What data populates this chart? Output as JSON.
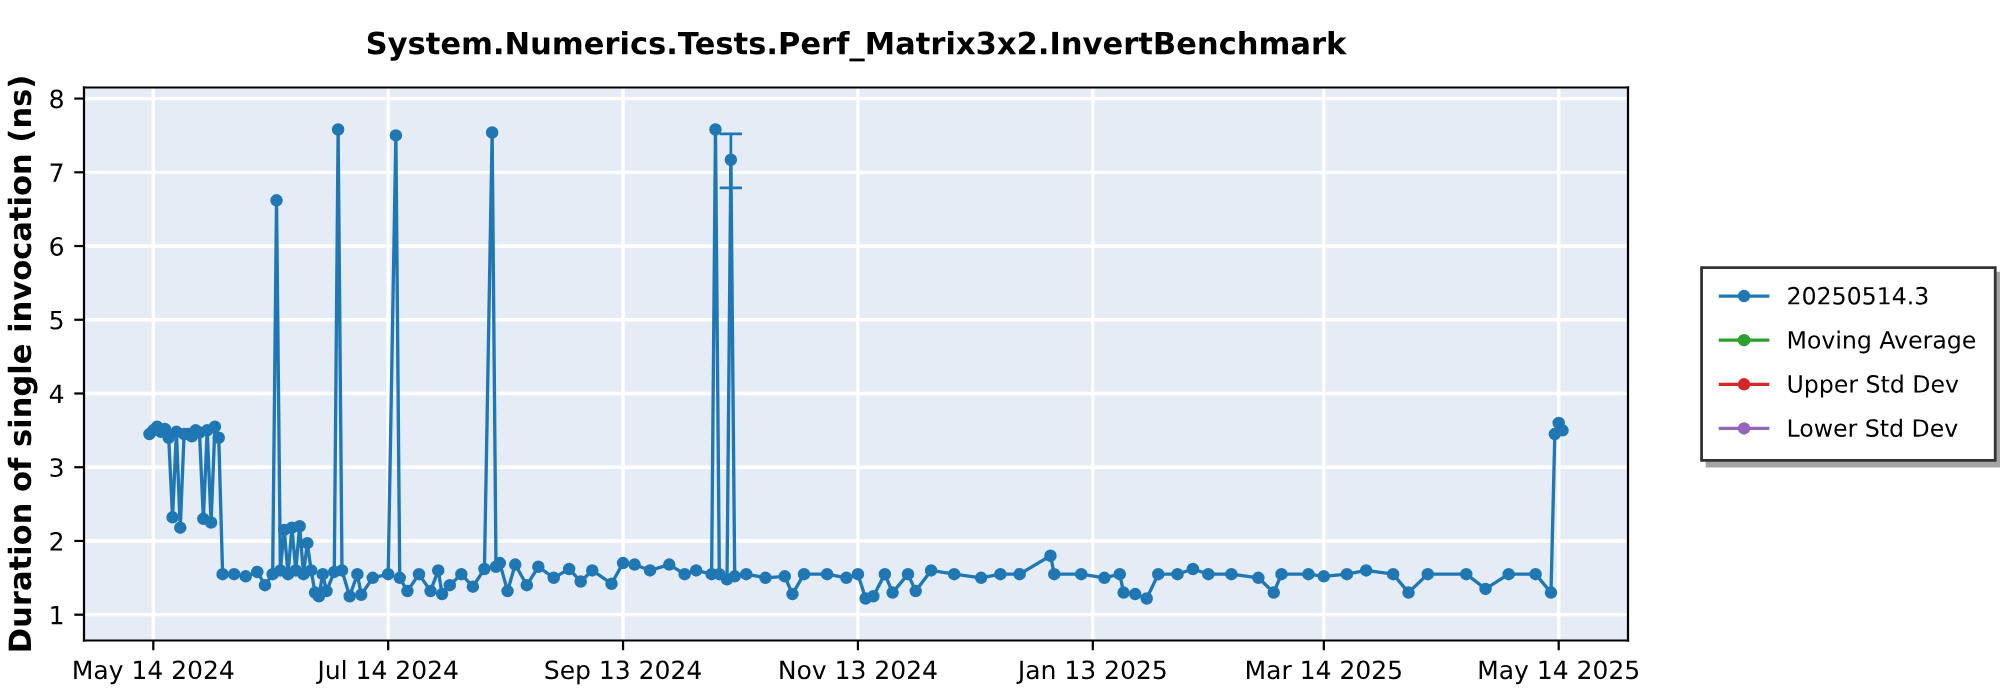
{
  "chart_data": {
    "type": "line",
    "title": "System.Numerics.Tests.Perf_Matrix3x2.InvertBenchmark",
    "ylabel": "Duration of single invocation (ns)",
    "xlim": [
      "2024-04-26",
      "2025-06-01"
    ],
    "ylim": [
      0.65,
      8.15
    ],
    "xticks": [
      {
        "value": "2024-05-14",
        "label": "May 14 2024"
      },
      {
        "value": "2024-07-14",
        "label": "Jul 14 2024"
      },
      {
        "value": "2024-09-13",
        "label": "Sep 13 2024"
      },
      {
        "value": "2024-11-13",
        "label": "Nov 13 2024"
      },
      {
        "value": "2025-01-13",
        "label": "Jan 13 2025"
      },
      {
        "value": "2025-03-14",
        "label": "Mar 14 2025"
      },
      {
        "value": "2025-05-14",
        "label": "May 14 2025"
      }
    ],
    "yticks": [
      1,
      2,
      3,
      4,
      5,
      6,
      7,
      8
    ],
    "grid": true,
    "legend": "right",
    "marker": "circle",
    "line_style": "solid",
    "series": [
      {
        "name": "20250514.3",
        "color": "#1f77b4",
        "x": [
          "2024-05-13",
          "2024-05-14",
          "2024-05-15",
          "2024-05-16",
          "2024-05-17",
          "2024-05-18",
          "2024-05-19",
          "2024-05-20",
          "2024-05-21",
          "2024-05-22",
          "2024-05-23",
          "2024-05-24",
          "2024-05-25",
          "2024-05-26",
          "2024-05-27",
          "2024-05-28",
          "2024-05-29",
          "2024-05-30",
          "2024-05-31",
          "2024-06-01",
          "2024-06-04",
          "2024-06-07",
          "2024-06-10",
          "2024-06-12",
          "2024-06-14",
          "2024-06-15",
          "2024-06-16",
          "2024-06-17",
          "2024-06-18",
          "2024-06-19",
          "2024-06-20",
          "2024-06-21",
          "2024-06-22",
          "2024-06-23",
          "2024-06-24",
          "2024-06-25",
          "2024-06-26",
          "2024-06-27",
          "2024-06-28",
          "2024-06-30",
          "2024-07-01",
          "2024-07-02",
          "2024-07-04",
          "2024-07-06",
          "2024-07-07",
          "2024-07-10",
          "2024-07-14",
          "2024-07-16",
          "2024-07-17",
          "2024-07-19",
          "2024-07-22",
          "2024-07-25",
          "2024-07-27",
          "2024-07-28",
          "2024-07-30",
          "2024-08-02",
          "2024-08-05",
          "2024-08-08",
          "2024-08-10",
          "2024-08-11",
          "2024-08-12",
          "2024-08-14",
          "2024-08-16",
          "2024-08-19",
          "2024-08-22",
          "2024-08-26",
          "2024-08-30",
          "2024-09-02",
          "2024-09-05",
          "2024-09-10",
          "2024-09-13",
          "2024-09-16",
          "2024-09-20",
          "2024-09-25",
          "2024-09-29",
          "2024-10-02",
          "2024-10-06",
          "2024-10-07",
          "2024-10-08",
          "2024-10-10",
          "2024-10-11",
          "2024-10-12",
          "2024-10-15",
          "2024-10-20",
          "2024-10-25",
          "2024-10-27",
          "2024-10-30",
          "2024-11-05",
          "2024-11-10",
          "2024-11-13",
          "2024-11-15",
          "2024-11-17",
          "2024-11-20",
          "2024-11-22",
          "2024-11-26",
          "2024-11-28",
          "2024-12-02",
          "2024-12-08",
          "2024-12-15",
          "2024-12-20",
          "2024-12-25",
          "2025-01-02",
          "2025-01-03",
          "2025-01-10",
          "2025-01-16",
          "2025-01-20",
          "2025-01-21",
          "2025-01-24",
          "2025-01-27",
          "2025-01-30",
          "2025-02-04",
          "2025-02-08",
          "2025-02-12",
          "2025-02-18",
          "2025-02-25",
          "2025-03-01",
          "2025-03-03",
          "2025-03-10",
          "2025-03-14",
          "2025-03-20",
          "2025-03-25",
          "2025-04-01",
          "2025-04-05",
          "2025-04-10",
          "2025-04-20",
          "2025-04-25",
          "2025-05-01",
          "2025-05-08",
          "2025-05-12",
          "2025-05-13",
          "2025-05-14",
          "2025-05-15"
        ],
        "values": [
          3.45,
          3.5,
          3.55,
          3.48,
          3.52,
          3.4,
          2.32,
          3.48,
          2.18,
          3.45,
          3.45,
          3.42,
          3.5,
          3.47,
          2.3,
          3.5,
          2.25,
          3.55,
          3.4,
          1.55,
          1.55,
          1.52,
          1.58,
          1.4,
          1.55,
          6.62,
          1.6,
          2.15,
          1.55,
          2.18,
          1.6,
          2.2,
          1.55,
          1.97,
          1.6,
          1.3,
          1.25,
          1.55,
          1.32,
          1.58,
          7.58,
          1.6,
          1.25,
          1.55,
          1.27,
          1.5,
          1.55,
          7.5,
          1.5,
          1.32,
          1.55,
          1.32,
          1.6,
          1.28,
          1.4,
          1.55,
          1.38,
          1.62,
          7.54,
          1.65,
          1.7,
          1.32,
          1.68,
          1.4,
          1.65,
          1.5,
          1.62,
          1.45,
          1.6,
          1.42,
          1.7,
          1.68,
          1.6,
          1.68,
          1.55,
          1.6,
          1.55,
          7.58,
          1.55,
          1.48,
          7.17,
          1.52,
          1.55,
          1.5,
          1.52,
          1.28,
          1.55,
          1.55,
          1.5,
          1.55,
          1.22,
          1.25,
          1.55,
          1.3,
          1.55,
          1.32,
          1.6,
          1.55,
          1.5,
          1.55,
          1.55,
          1.8,
          1.55,
          1.55,
          1.5,
          1.55,
          1.3,
          1.28,
          1.22,
          1.55,
          1.55,
          1.62,
          1.55,
          1.55,
          1.5,
          1.3,
          1.55,
          1.55,
          1.52,
          1.55,
          1.6,
          1.55,
          1.3,
          1.55,
          1.55,
          1.35,
          1.55,
          1.55,
          1.3,
          3.45,
          3.6,
          3.5
        ],
        "errors": [
          null,
          null,
          null,
          null,
          null,
          null,
          null,
          null,
          null,
          null,
          null,
          null,
          null,
          null,
          null,
          null,
          null,
          null,
          null,
          null,
          null,
          null,
          null,
          null,
          null,
          null,
          null,
          null,
          null,
          null,
          null,
          null,
          null,
          null,
          null,
          null,
          null,
          null,
          null,
          null,
          null,
          null,
          null,
          null,
          null,
          null,
          null,
          null,
          null,
          null,
          null,
          null,
          null,
          null,
          null,
          null,
          null,
          null,
          null,
          null,
          null,
          null,
          null,
          null,
          null,
          null,
          null,
          null,
          null,
          null,
          null,
          null,
          null,
          null,
          null,
          null,
          null,
          null,
          null,
          null,
          [
            6.79,
            7.52
          ],
          null,
          null,
          null,
          null,
          null,
          null,
          null,
          null,
          null,
          null,
          null,
          null,
          null,
          null,
          null,
          null,
          null,
          null,
          null,
          null,
          null,
          null,
          null,
          null,
          null,
          null,
          null,
          null,
          null,
          null,
          null,
          null,
          null,
          null,
          null,
          null,
          null,
          null,
          null,
          null,
          null,
          null,
          null,
          null,
          null,
          null,
          null,
          null,
          null,
          null,
          null
        ]
      },
      {
        "name": "Moving Average",
        "color": "#2ca02c"
      },
      {
        "name": "Upper Std Dev",
        "color": "#d62728"
      },
      {
        "name": "Lower Std Dev",
        "color": "#9467bd"
      }
    ]
  }
}
